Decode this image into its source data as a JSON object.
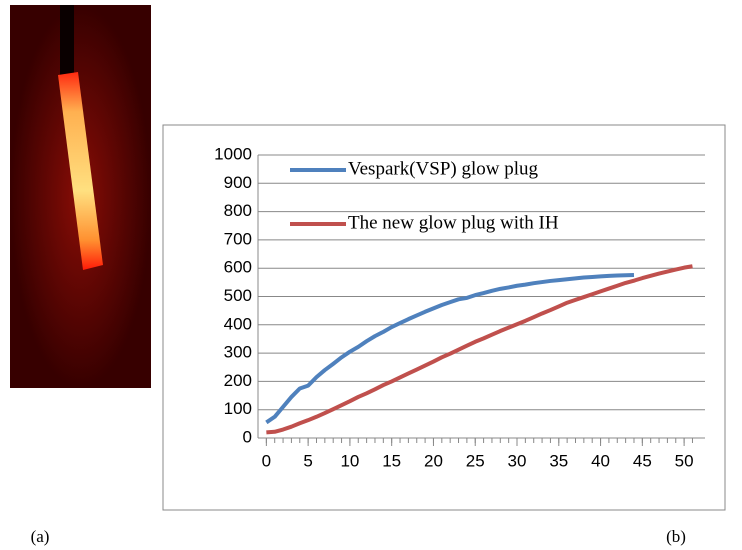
{
  "chart_data": {
    "type": "line",
    "x": [
      0,
      1,
      2,
      3,
      4,
      5,
      6,
      7,
      8,
      9,
      10,
      11,
      12,
      13,
      14,
      15,
      16,
      17,
      18,
      19,
      20,
      21,
      22,
      23,
      24,
      25,
      26,
      27,
      28,
      29,
      30,
      31,
      32,
      33,
      34,
      35,
      36,
      37,
      38,
      39,
      40,
      41,
      42,
      43,
      44,
      45,
      46,
      47,
      48,
      49,
      50,
      51
    ],
    "series": [
      {
        "name": "Vespark(VSP) glow plug",
        "color": "#4f81bd",
        "values": [
          55,
          75,
          110,
          145,
          175,
          185,
          215,
          240,
          262,
          285,
          305,
          322,
          342,
          360,
          375,
          392,
          406,
          420,
          433,
          446,
          458,
          470,
          480,
          490,
          495,
          505,
          512,
          520,
          527,
          532,
          538,
          542,
          547,
          551,
          555,
          558,
          561,
          564,
          567,
          569,
          571,
          573,
          574,
          575,
          576,
          null,
          null,
          null,
          null,
          null,
          null,
          null
        ]
      },
      {
        "name": "The new glow plug with IH",
        "color": "#c0504d",
        "values": [
          20,
          22,
          30,
          40,
          52,
          63,
          75,
          88,
          102,
          116,
          130,
          145,
          158,
          172,
          187,
          200,
          214,
          228,
          242,
          256,
          270,
          285,
          298,
          312,
          326,
          340,
          352,
          365,
          378,
          390,
          402,
          414,
          427,
          440,
          452,
          465,
          478,
          488,
          498,
          508,
          518,
          528,
          538,
          548,
          556,
          565,
          573,
          581,
          588,
          595,
          602,
          607
        ]
      }
    ],
    "xlim": [
      -1,
      52.5
    ],
    "xticks": [
      0,
      5,
      10,
      15,
      20,
      25,
      30,
      35,
      40,
      45,
      50
    ],
    "ylim": [
      0,
      1000
    ],
    "yticks": [
      0,
      100,
      200,
      300,
      400,
      500,
      600,
      700,
      800,
      900,
      1000
    ],
    "grid": true,
    "legend": "top-left"
  },
  "captions": [
    "(a)",
    "(b)"
  ]
}
